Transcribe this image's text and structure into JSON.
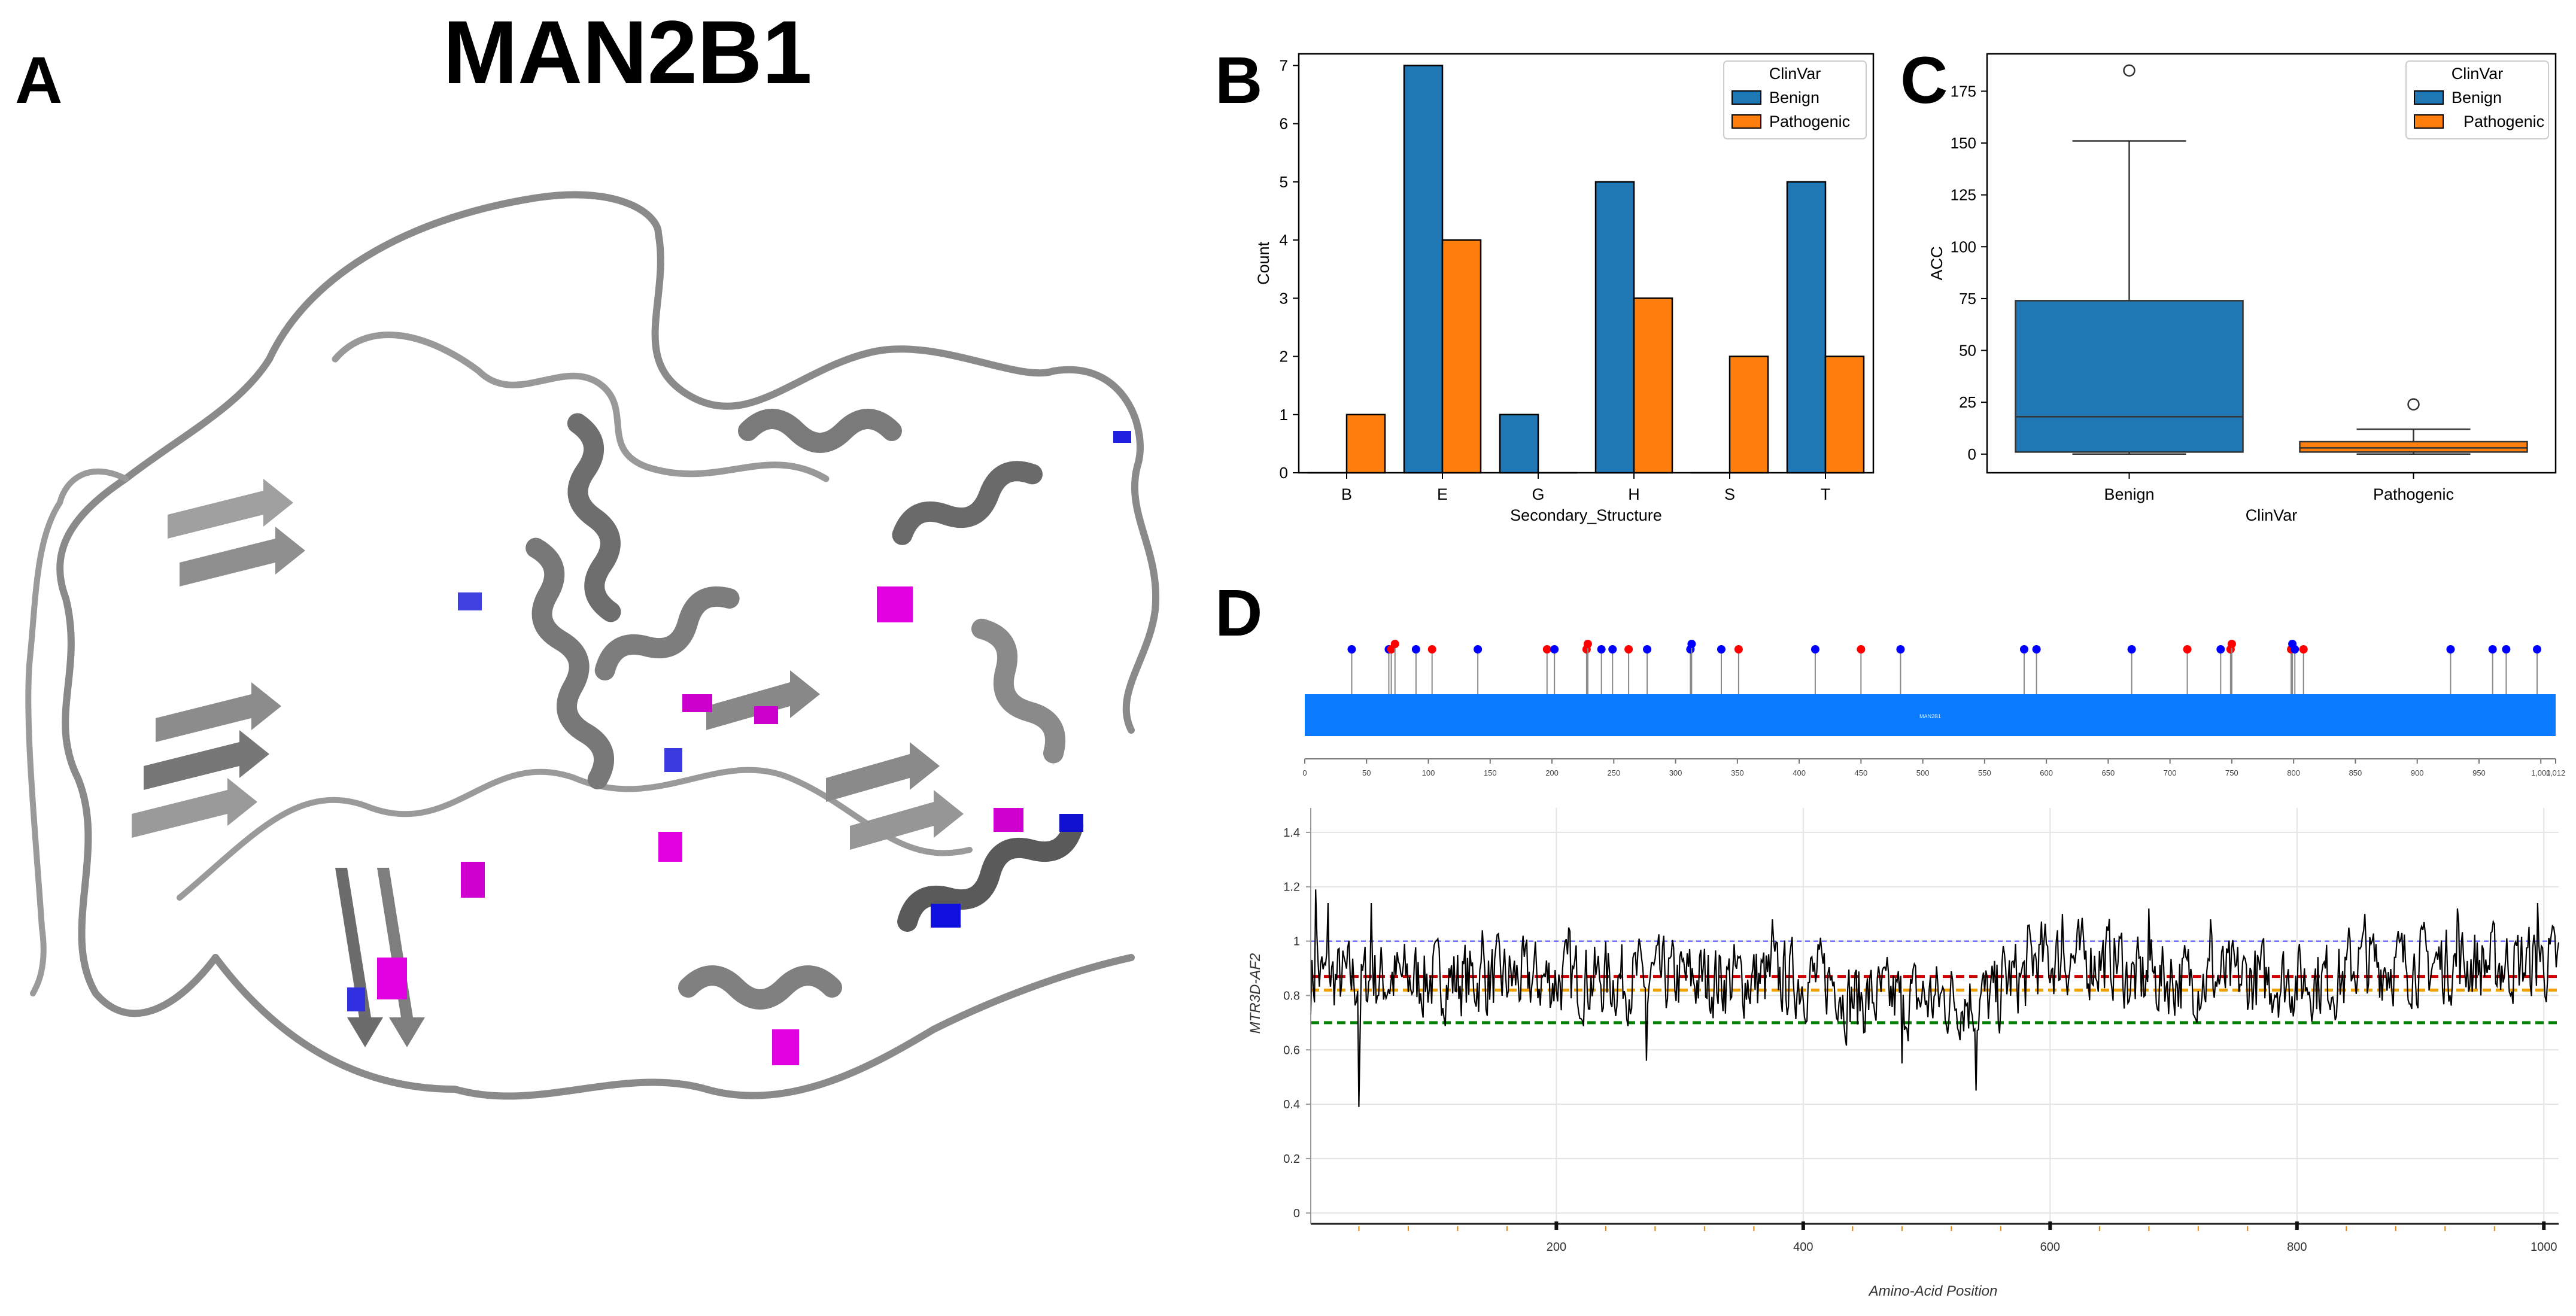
{
  "panels": {
    "a_letter": "A",
    "b_letter": "B",
    "c_letter": "C",
    "d_letter": "D"
  },
  "structure": {
    "title": "MAN2B1"
  },
  "chart_data": [
    {
      "id": "B",
      "type": "bar",
      "categories": [
        "B",
        "E",
        "G",
        "H",
        "S",
        "T"
      ],
      "series": [
        {
          "name": "Benign",
          "color": "#1f77b4",
          "values": [
            0,
            7,
            1,
            5,
            0,
            5
          ]
        },
        {
          "name": "Pathogenic",
          "color": "#ff7f0e",
          "values": [
            1,
            4,
            0,
            3,
            2,
            2
          ]
        }
      ],
      "title": "",
      "xlabel": "Secondary_Structure",
      "ylabel": "Count",
      "ylim": [
        0,
        7.2
      ],
      "yticks": [
        "0",
        "1",
        "2",
        "3",
        "4",
        "5",
        "6",
        "7"
      ],
      "legend": {
        "title": "ClinVar",
        "entries": [
          "Benign",
          "Pathogenic"
        ],
        "position": "top-right"
      }
    },
    {
      "id": "C",
      "type": "box",
      "categories": [
        "Benign",
        "Pathogenic"
      ],
      "series": [
        {
          "name": "Benign",
          "color": "#1f77b4",
          "whisker_low": 0,
          "q1": 1,
          "median": 18,
          "q3": 74,
          "whisker_high": 151,
          "outliers": [
            185
          ]
        },
        {
          "name": "Pathogenic",
          "color": "#ff7f0e",
          "whisker_low": 0,
          "q1": 1,
          "median": 3,
          "q3": 6,
          "whisker_high": 12,
          "outliers": [
            24
          ]
        }
      ],
      "xlabel": "ClinVar",
      "ylabel": "ACC",
      "ylim": [
        -9,
        193
      ],
      "yticks": [
        "0",
        "25",
        "50",
        "75",
        "100",
        "125",
        "150",
        "175"
      ],
      "legend": {
        "title": "ClinVar",
        "entries": [
          "Benign",
          "Pathogenic"
        ],
        "position": "top-right"
      }
    },
    {
      "id": "D-lollipop",
      "type": "lollipop",
      "gene_label": "MAN2B1",
      "length": 1012,
      "axis_ticks": [
        "0",
        "50",
        "100",
        "150",
        "200",
        "250",
        "300",
        "350",
        "400",
        "450",
        "500",
        "550",
        "600",
        "650",
        "700",
        "750",
        "800",
        "850",
        "900",
        "950",
        "1,000",
        "1,012"
      ],
      "variants": [
        {
          "pos": 38,
          "class": "benign"
        },
        {
          "pos": 68,
          "class": "benign"
        },
        {
          "pos": 70,
          "class": "pathogenic"
        },
        {
          "pos": 73,
          "class": "pathogenic"
        },
        {
          "pos": 90,
          "class": "benign"
        },
        {
          "pos": 103,
          "class": "pathogenic"
        },
        {
          "pos": 140,
          "class": "benign"
        },
        {
          "pos": 196,
          "class": "pathogenic"
        },
        {
          "pos": 202,
          "class": "benign"
        },
        {
          "pos": 228,
          "class": "pathogenic"
        },
        {
          "pos": 229,
          "class": "pathogenic"
        },
        {
          "pos": 240,
          "class": "benign"
        },
        {
          "pos": 249,
          "class": "benign"
        },
        {
          "pos": 262,
          "class": "pathogenic"
        },
        {
          "pos": 277,
          "class": "benign"
        },
        {
          "pos": 312,
          "class": "benign"
        },
        {
          "pos": 313,
          "class": "benign"
        },
        {
          "pos": 337,
          "class": "benign"
        },
        {
          "pos": 351,
          "class": "pathogenic"
        },
        {
          "pos": 413,
          "class": "benign"
        },
        {
          "pos": 450,
          "class": "pathogenic"
        },
        {
          "pos": 482,
          "class": "benign"
        },
        {
          "pos": 582,
          "class": "benign"
        },
        {
          "pos": 592,
          "class": "benign"
        },
        {
          "pos": 669,
          "class": "benign"
        },
        {
          "pos": 714,
          "class": "pathogenic"
        },
        {
          "pos": 741,
          "class": "benign"
        },
        {
          "pos": 749,
          "class": "pathogenic"
        },
        {
          "pos": 750,
          "class": "pathogenic"
        },
        {
          "pos": 798,
          "class": "pathogenic"
        },
        {
          "pos": 799,
          "class": "benign"
        },
        {
          "pos": 801,
          "class": "benign"
        },
        {
          "pos": 808,
          "class": "pathogenic"
        },
        {
          "pos": 927,
          "class": "benign"
        },
        {
          "pos": 961,
          "class": "benign"
        },
        {
          "pos": 972,
          "class": "benign"
        },
        {
          "pos": 997,
          "class": "benign"
        }
      ],
      "colors": {
        "benign": "#0000ff",
        "pathogenic": "#ff0000",
        "domain": "#0a7bff"
      }
    },
    {
      "id": "D-line",
      "type": "line",
      "xlabel": "Amino-Acid Position",
      "ylabel": "MTR3D-AF2",
      "xlim": [
        1,
        1012
      ],
      "ylim": [
        -0.04,
        1.49
      ],
      "xticks": [
        "200",
        "400",
        "600",
        "800",
        "1000"
      ],
      "yticks": [
        "0",
        "0.2",
        "0.4",
        "0.6",
        "0.8",
        "1",
        "1.2",
        "1.4"
      ],
      "reference_lines": [
        {
          "value": 1.0,
          "color": "#4040ff",
          "style": "dashed-thin"
        },
        {
          "value": 0.87,
          "color": "#d00000",
          "style": "dashed-thick"
        },
        {
          "value": 0.82,
          "color": "#f0a000",
          "style": "dashed-thick"
        },
        {
          "value": 0.7,
          "color": "#008000",
          "style": "dashed-thick"
        }
      ],
      "spikes": [
        {
          "pos": 5,
          "value": 1.19
        },
        {
          "pos": 15,
          "value": 1.14
        },
        {
          "pos": 40,
          "value": 0.39
        },
        {
          "pos": 50,
          "value": 1.14
        },
        {
          "pos": 140,
          "value": 1.04
        },
        {
          "pos": 210,
          "value": 1.05
        },
        {
          "pos": 273,
          "value": 0.56
        },
        {
          "pos": 375,
          "value": 1.08
        },
        {
          "pos": 480,
          "value": 0.55
        },
        {
          "pos": 540,
          "value": 0.45
        },
        {
          "pos": 610,
          "value": 1.1
        },
        {
          "pos": 680,
          "value": 1.12
        },
        {
          "pos": 730,
          "value": 1.08
        },
        {
          "pos": 855,
          "value": 1.1
        },
        {
          "pos": 930,
          "value": 1.12
        },
        {
          "pos": 995,
          "value": 1.14
        }
      ],
      "baseline": 0.86
    }
  ]
}
